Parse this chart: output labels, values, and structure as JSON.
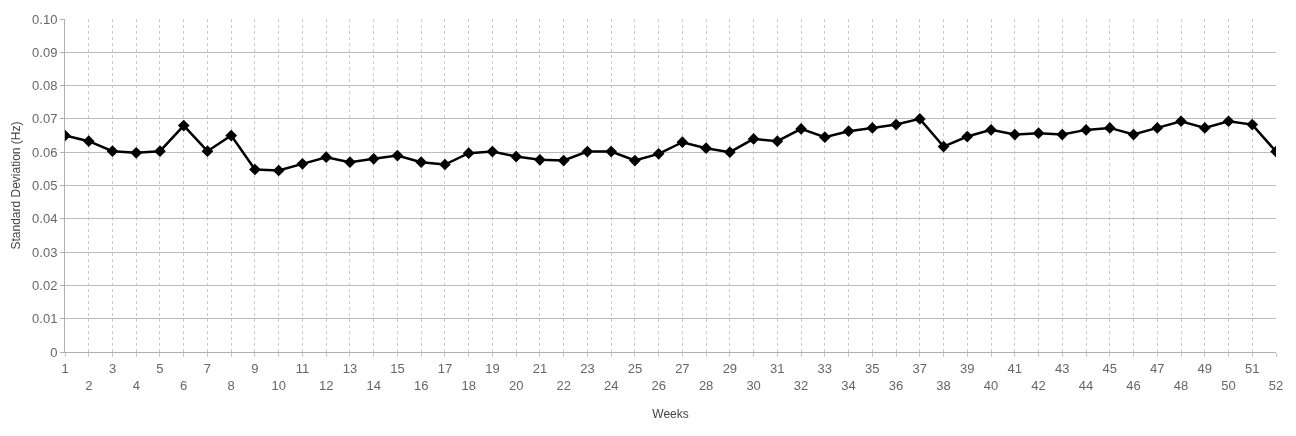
{
  "chart_data": {
    "type": "line",
    "xlabel": "Weeks",
    "ylabel": "Standard Deviation (Hz)",
    "categories": [
      "1",
      "2",
      "3",
      "4",
      "5",
      "6",
      "7",
      "8",
      "9",
      "10",
      "11",
      "12",
      "13",
      "14",
      "15",
      "16",
      "17",
      "18",
      "19",
      "20",
      "21",
      "22",
      "23",
      "24",
      "25",
      "26",
      "27",
      "28",
      "29",
      "30",
      "31",
      "32",
      "33",
      "34",
      "35",
      "36",
      "37",
      "38",
      "39",
      "40",
      "41",
      "42",
      "43",
      "44",
      "45",
      "46",
      "47",
      "48",
      "49",
      "50",
      "51",
      "52"
    ],
    "series": [
      {
        "color": "#000000",
        "values": [
          0.065,
          0.0633,
          0.0603,
          0.0598,
          0.0603,
          0.068,
          0.0603,
          0.065,
          0.0548,
          0.0545,
          0.0565,
          0.0585,
          0.057,
          0.058,
          0.059,
          0.057,
          0.0563,
          0.0597,
          0.0602,
          0.0587,
          0.0577,
          0.0575,
          0.0602,
          0.0602,
          0.0575,
          0.0595,
          0.063,
          0.0612,
          0.06,
          0.064,
          0.0633,
          0.067,
          0.0645,
          0.0663,
          0.0673,
          0.0683,
          0.07,
          0.0617,
          0.0647,
          0.0667,
          0.0653,
          0.0657,
          0.0653,
          0.0667,
          0.0673,
          0.0653,
          0.0673,
          0.0693,
          0.0673,
          0.0693,
          0.0683,
          0.0602
        ]
      }
    ],
    "ylim": [
      0,
      0.1
    ],
    "yticks": [
      0,
      0.01,
      0.02,
      0.03,
      0.04,
      0.05,
      0.06,
      0.07,
      0.08,
      0.09,
      {
        "value": 0.1,
        "label": "0.10"
      }
    ],
    "grid": true,
    "marker": "diamond",
    "line_style": "solid"
  }
}
